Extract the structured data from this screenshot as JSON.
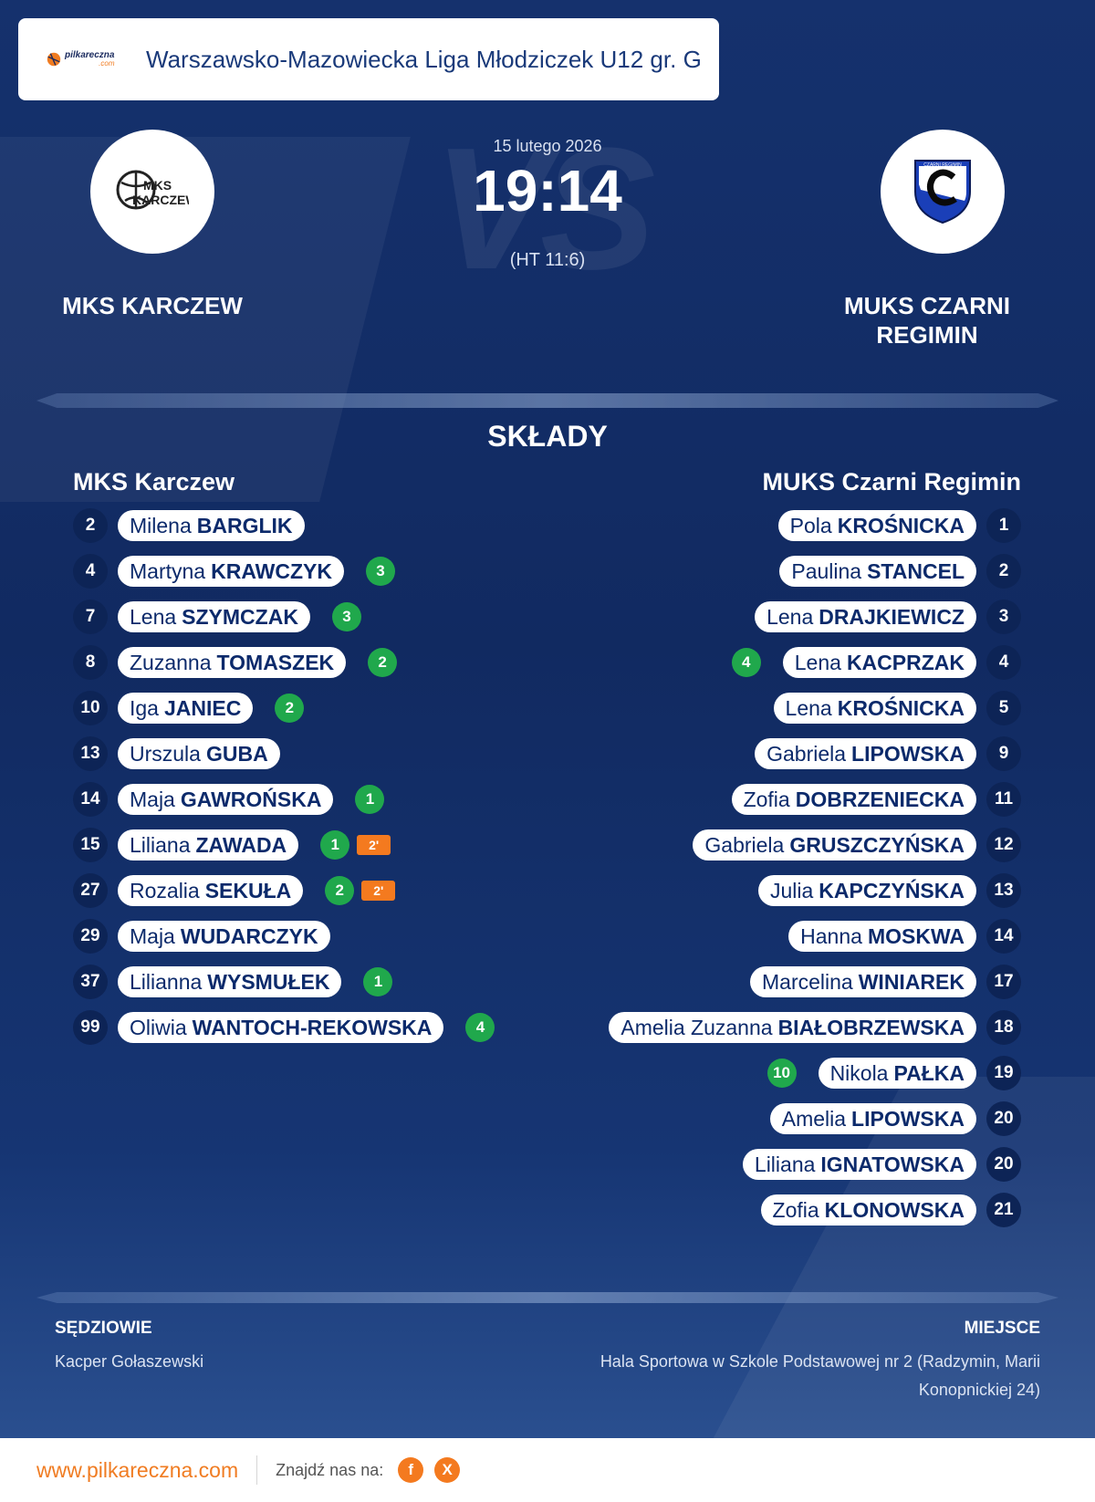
{
  "league": {
    "title": "Warszawsko-Mazowiecka Liga Młodziczek U12 gr. G",
    "logo_text": "pilkareczna",
    "logo_sub": ".com"
  },
  "match": {
    "date": "15 lutego 2026",
    "score": "19:14",
    "halftime": "(HT 11:6)",
    "vs": "VS"
  },
  "home": {
    "name": "MKS KARCZEW",
    "logo_text_1": "MKS",
    "logo_text_2": "KARCZEW"
  },
  "away": {
    "name_line1": "MUKS CZARNI",
    "name_line2": "REGIMIN",
    "logo_text": "CZARNI REGIMIN"
  },
  "lineups": {
    "title": "SKŁADY",
    "home_team": "MKS Karczew",
    "away_team": "MUKS Czarni Regimin",
    "home_players": [
      {
        "num": "2",
        "first": "Milena",
        "last": "BARGLIK",
        "goals": "",
        "susp": ""
      },
      {
        "num": "4",
        "first": "Martyna",
        "last": "KRAWCZYK",
        "goals": "3",
        "susp": ""
      },
      {
        "num": "7",
        "first": "Lena",
        "last": "SZYMCZAK",
        "goals": "3",
        "susp": ""
      },
      {
        "num": "8",
        "first": "Zuzanna",
        "last": "TOMASZEK",
        "goals": "2",
        "susp": ""
      },
      {
        "num": "10",
        "first": "Iga",
        "last": "JANIEC",
        "goals": "2",
        "susp": ""
      },
      {
        "num": "13",
        "first": "Urszula",
        "last": "GUBA",
        "goals": "",
        "susp": ""
      },
      {
        "num": "14",
        "first": "Maja",
        "last": "GAWROŃSKA",
        "goals": "1",
        "susp": ""
      },
      {
        "num": "15",
        "first": "Liliana",
        "last": "ZAWADA",
        "goals": "1",
        "susp": "2'"
      },
      {
        "num": "27",
        "first": "Rozalia",
        "last": "SEKUŁA",
        "goals": "2",
        "susp": "2'"
      },
      {
        "num": "29",
        "first": "Maja",
        "last": "WUDARCZYK",
        "goals": "",
        "susp": ""
      },
      {
        "num": "37",
        "first": "Lilianna",
        "last": "WYSMUŁEK",
        "goals": "1",
        "susp": ""
      },
      {
        "num": "99",
        "first": "Oliwia",
        "last": "WANTOCH-REKOWSKA",
        "goals": "4",
        "susp": ""
      }
    ],
    "away_players": [
      {
        "num": "1",
        "first": "Pola",
        "last": "KROŚNICKA",
        "goals": ""
      },
      {
        "num": "2",
        "first": "Paulina",
        "last": "STANCEL",
        "goals": ""
      },
      {
        "num": "3",
        "first": "Lena",
        "last": "DRAJKIEWICZ",
        "goals": ""
      },
      {
        "num": "4",
        "first": "Lena",
        "last": "KACPRZAK",
        "goals": "4"
      },
      {
        "num": "5",
        "first": "Lena",
        "last": "KROŚNICKA",
        "goals": ""
      },
      {
        "num": "9",
        "first": "Gabriela",
        "last": "LIPOWSKA",
        "goals": ""
      },
      {
        "num": "11",
        "first": "Zofia",
        "last": "DOBRZENIECKA",
        "goals": ""
      },
      {
        "num": "12",
        "first": "Gabriela",
        "last": "GRUSZCZYŃSKA",
        "goals": ""
      },
      {
        "num": "13",
        "first": "Julia",
        "last": "KAPCZYŃSKA",
        "goals": ""
      },
      {
        "num": "14",
        "first": "Hanna",
        "last": "MOSKWA",
        "goals": ""
      },
      {
        "num": "17",
        "first": "Marcelina",
        "last": "WINIAREK",
        "goals": ""
      },
      {
        "num": "18",
        "first": "Amelia Zuzanna",
        "last": "BIAŁOBRZEWSKA",
        "goals": ""
      },
      {
        "num": "19",
        "first": "Nikola",
        "last": "PAŁKA",
        "goals": "10"
      },
      {
        "num": "20",
        "first": "Amelia",
        "last": "LIPOWSKA",
        "goals": ""
      },
      {
        "num": "20",
        "first": "Liliana",
        "last": "IGNATOWSKA",
        "goals": ""
      },
      {
        "num": "21",
        "first": "Zofia",
        "last": "KLONOWSKA",
        "goals": ""
      }
    ]
  },
  "officials": {
    "label": "SĘDZIOWIE",
    "name": "Kacper Gołaszewski"
  },
  "venue": {
    "label": "MIEJSCE",
    "line1": "Hala Sportowa w Szkole Podstawowej nr 2 (Radzymin, Marii",
    "line2": "Konopnickiej 24)"
  },
  "footer": {
    "site": "www.pilkareczna.com",
    "find": "Znajdź nas na:",
    "fb": "f",
    "x": "X"
  },
  "colors": {
    "background": "#12295f",
    "accent": "#f07c22",
    "goal": "#20a84c",
    "suspension": "#f47a1f",
    "pill_text": "#0c2a6b"
  }
}
